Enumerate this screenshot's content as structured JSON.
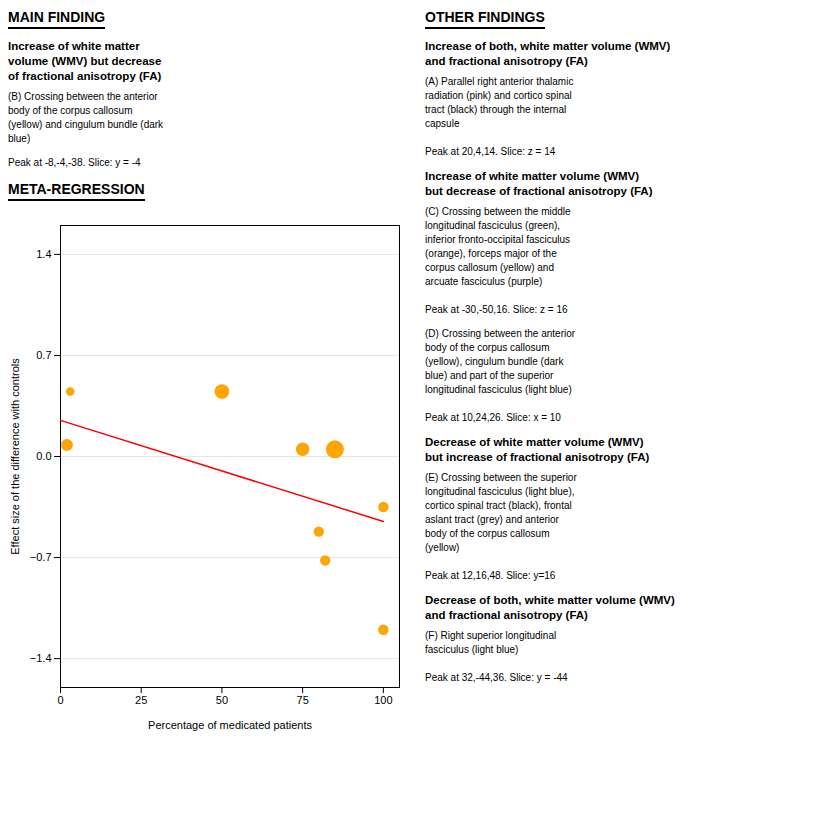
{
  "chart_data": {
    "type": "scatter",
    "xlabel": "Percentage of medicated patients",
    "ylabel": "Effect size of the difference with controls",
    "series": [
      {
        "type": "scatter",
        "color": "#FFA500",
        "x": [
          2,
          3,
          50,
          75,
          80,
          82,
          85,
          100,
          100
        ],
        "values": [
          0.08,
          0.45,
          0.45,
          0.05,
          -0.52,
          -0.72,
          0.05,
          -0.35,
          -1.2
        ],
        "sizes": [
          80,
          40,
          120,
          100,
          60,
          60,
          180,
          60,
          60
        ]
      },
      {
        "type": "line",
        "color": "red",
        "x": [
          0,
          100
        ],
        "values": [
          0.25,
          -0.45
        ]
      }
    ],
    "xlim": [
      0,
      105
    ],
    "xticks": [
      0,
      25,
      50,
      75,
      100
    ],
    "ylim": [
      -1.6,
      1.6
    ],
    "yticks": [
      -1.4,
      -0.7,
      {
        "value": 0.0,
        "label": "0.0"
      },
      0.7,
      1.4
    ],
    "grid": "y",
    "annotations": [
      "MAIN FINDING",
      "OTHER FINDINGS",
      "META-REGRESSION",
      "Increase of white matter\nvolume (WMV) but decrease\nof fractional anisotropy (FA)",
      "(B) Crossing between the anterior\nbody of the corpus callosum\n(yellow) and cingulum bundle (dark\nblue)",
      "Peak at -8,-4,-38. Slice: y = -4",
      "Increase of both, white matter volume (WMV)\nand fractional anisotropy (FA)",
      "(A) Parallel right anterior thalamic\nradiation (pink) and cortico spinal\ntract (black) through the internal\ncapsule\n\nPeak at 20,4,14. Slice: z = 14",
      "Increase of white matter volume (WMV)\nbut decrease of fractional anisotropy (FA)",
      "(C) Crossing between the middle\nlongitudinal fasciculus (green),\ninferior fronto-occipital fasciculus\n(orange), forceps major of the\ncorpus callosum (yellow) and\narcuate fasciculus (purple)\n\nPeak at -30,-50,16. Slice: z = 16",
      "(D) Crossing between the anterior\nbody of the corpus callosum\n(yellow), cingulum bundle (dark\nblue) and part of the superior\nlongitudinal fasciculus (light blue)\n\nPeak at 10,24,26. Slice: x = 10",
      "Decrease of white matter volume (WMV)\nbut increase of fractional anisotropy (FA)",
      "(E) Crossing between the superior\nlongitudinal fasciculus (light blue),\ncortico spinal tract (black), frontal\naslant tract (grey) and anterior\nbody of the corpus callosum\n(yellow)\n\nPeak at 12,16,48. Slice: y=16",
      "Decrease of both, white matter volume (WMV)\nand fractional anisotropy (FA)",
      "(F) Right superior longitudinal\nfasciculus (light blue)\n\nPeak at 32,-44,36. Slice: y = -44"
    ]
  }
}
